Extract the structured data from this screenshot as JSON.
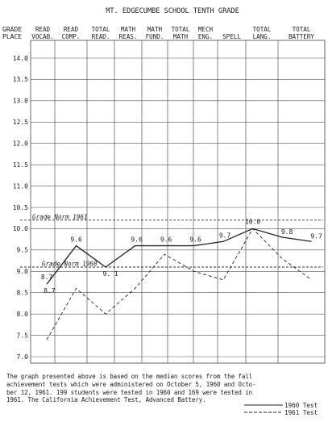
{
  "chart_data": {
    "type": "line",
    "title": "MT. EDGECUMBE SCHOOL TENTH GRADE",
    "ylabel": "GRADE PLACE",
    "categories": [
      [
        "READ",
        "VOCAB."
      ],
      [
        "READ",
        "COMP."
      ],
      [
        "TOTAL",
        "READ."
      ],
      [
        "MATH",
        "REAS."
      ],
      [
        "MATH",
        "FUND."
      ],
      [
        "TOTAL",
        "MATH"
      ],
      [
        "MECH",
        "ENG."
      ],
      [
        "SPELL"
      ],
      [
        "TOTAL",
        "LANG."
      ],
      [
        "TOTAL",
        "BATTERY"
      ]
    ],
    "ylim": [
      7.0,
      14.0
    ],
    "yticks": [
      "14.0",
      "13.5",
      "13.0",
      "12.5",
      "12.0",
      "11.5",
      "11.0",
      "10.5",
      "10.0",
      "9.5",
      "9.0",
      "8.5",
      "8.0",
      "7.5",
      "7.0"
    ],
    "series": [
      {
        "name": "1960 Test",
        "style": "solid",
        "values": [
          8.7,
          9.6,
          9.1,
          9.6,
          9.6,
          9.6,
          9.7,
          10.0,
          9.8,
          9.7
        ],
        "labels": [
          "8.7",
          "9.6",
          "9. 1",
          "9.6",
          "9.6",
          "9.6",
          "9.7",
          "10.0",
          "9.8",
          "9.7"
        ]
      },
      {
        "name": "1961 Test",
        "style": "dashed",
        "values": [
          7.4,
          8.6,
          8.0,
          8.6,
          9.4,
          9.0,
          8.8,
          10.0,
          9.3,
          8.8
        ]
      }
    ],
    "reference_lines": [
      {
        "label": "Grade Norm 1961",
        "value": 10.2
      },
      {
        "label": "Grade Norm 1960",
        "value": 9.1
      }
    ],
    "legend_position": "bottom-right",
    "grid": true
  },
  "note": {
    "lines": [
      "The graph presented above is based on the median scores from the fall",
      "achievement tests which were administered on October 5, 1960 and Octo-",
      "ber 12, 1961.  199 students were tested in 1960 and 169 were tested in",
      "1961.  The California Achievement Test, Advanced Battery."
    ]
  }
}
